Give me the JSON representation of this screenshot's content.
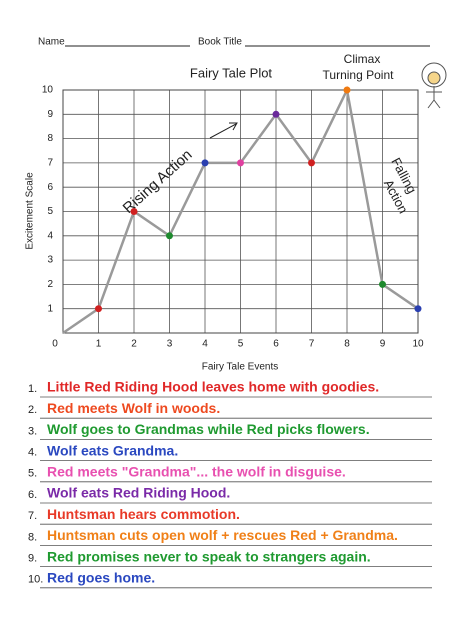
{
  "header": {
    "name_label": "Name",
    "book_title_label": "Book Title"
  },
  "chart_data": {
    "type": "line",
    "title": "Fairy Tale Plot",
    "x_label": "Fairy Tale Events",
    "y_label": "Excitement Scale",
    "x": [
      0,
      1,
      2,
      3,
      4,
      5,
      6,
      7,
      8,
      9,
      10
    ],
    "values": [
      0,
      1,
      5,
      4,
      7,
      7,
      9,
      7,
      10,
      2,
      1
    ],
    "color": "#9a9a9a",
    "point_colors": [
      null,
      "#d02020",
      "#d02020",
      "#1e8a2e",
      "#2a3fb0",
      "#e040a0",
      "#6a2a9a",
      "#d02020",
      "#f07a10",
      "#1e8a2e",
      "#2a3fb0"
    ],
    "xlim": [
      0,
      10
    ],
    "ylim": [
      0,
      10
    ],
    "xticks": [
      0,
      1,
      2,
      3,
      4,
      5,
      6,
      7,
      8,
      9,
      10
    ],
    "yticks": [
      1,
      2,
      3,
      4,
      5,
      6,
      7,
      8,
      9,
      10
    ],
    "grid": true,
    "annotations": [
      "Rising Action",
      "Climax",
      "Turning Point",
      "Falling",
      "Action"
    ]
  },
  "events": [
    {
      "number": "1.",
      "text": "Little Red Riding Hood leaves home with goodies.",
      "color": "#e02828"
    },
    {
      "number": "2.",
      "text": "Red meets Wolf in woods.",
      "color": "#ee4a20"
    },
    {
      "number": "3.",
      "text": "Wolf goes to Grandmas while Red picks flowers.",
      "color": "#1f9a30"
    },
    {
      "number": "4.",
      "text": "Wolf eats Grandma.",
      "color": "#2a48c0"
    },
    {
      "number": "5.",
      "text": "Red meets \"Grandma\"... the wolf in disguise.",
      "color": "#e850b0"
    },
    {
      "number": "6.",
      "text": "Wolf eats Red Riding Hood.",
      "color": "#7a2aa8"
    },
    {
      "number": "7.",
      "text": "Huntsman hears commotion.",
      "color": "#e83a28"
    },
    {
      "number": "8.",
      "text": "Huntsman cuts open wolf + rescues Red + Grandma.",
      "color": "#f08018"
    },
    {
      "number": "9.",
      "text": "Red promises never to speak to strangers again.",
      "color": "#1f9a30"
    },
    {
      "number": "10.",
      "text": "Red goes home.",
      "color": "#2a48c0"
    }
  ]
}
